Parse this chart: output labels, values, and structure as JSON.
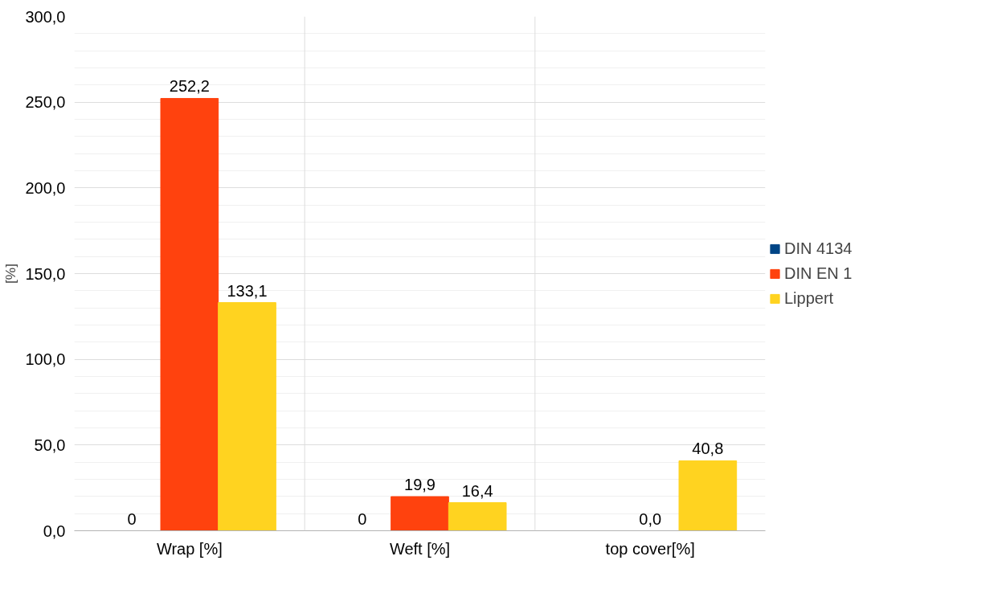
{
  "chart_data": {
    "type": "bar",
    "ylabel": "[%]",
    "categories": [
      "Wrap [%]",
      "Weft [%]",
      "top cover[%]"
    ],
    "series": [
      {
        "name": "DIN 4134",
        "color": "#004586",
        "values": [
          0,
          0,
          null
        ],
        "value_labels": [
          "0",
          "0",
          null
        ]
      },
      {
        "name": "DIN EN 1",
        "color": "#ff420e",
        "values": [
          252.2,
          19.9,
          0.0
        ],
        "value_labels": [
          "252,2",
          "19,9",
          "0,0"
        ]
      },
      {
        "name": "Lippert",
        "color": "#ffd320",
        "values": [
          133.1,
          16.4,
          40.8
        ],
        "value_labels": [
          "133,1",
          "16,4",
          "40,8"
        ]
      }
    ],
    "ylim": [
      0,
      300
    ],
    "yticks": [
      {
        "value": 0,
        "label": "0,0"
      },
      {
        "value": 50,
        "label": "50,0"
      },
      {
        "value": 100,
        "label": "100,0"
      },
      {
        "value": 150,
        "label": "150,0"
      },
      {
        "value": 200,
        "label": "200,0"
      },
      {
        "value": 250,
        "label": "250,0"
      },
      {
        "value": 300,
        "label": "300,0"
      }
    ],
    "grid": true,
    "legend": "right"
  }
}
